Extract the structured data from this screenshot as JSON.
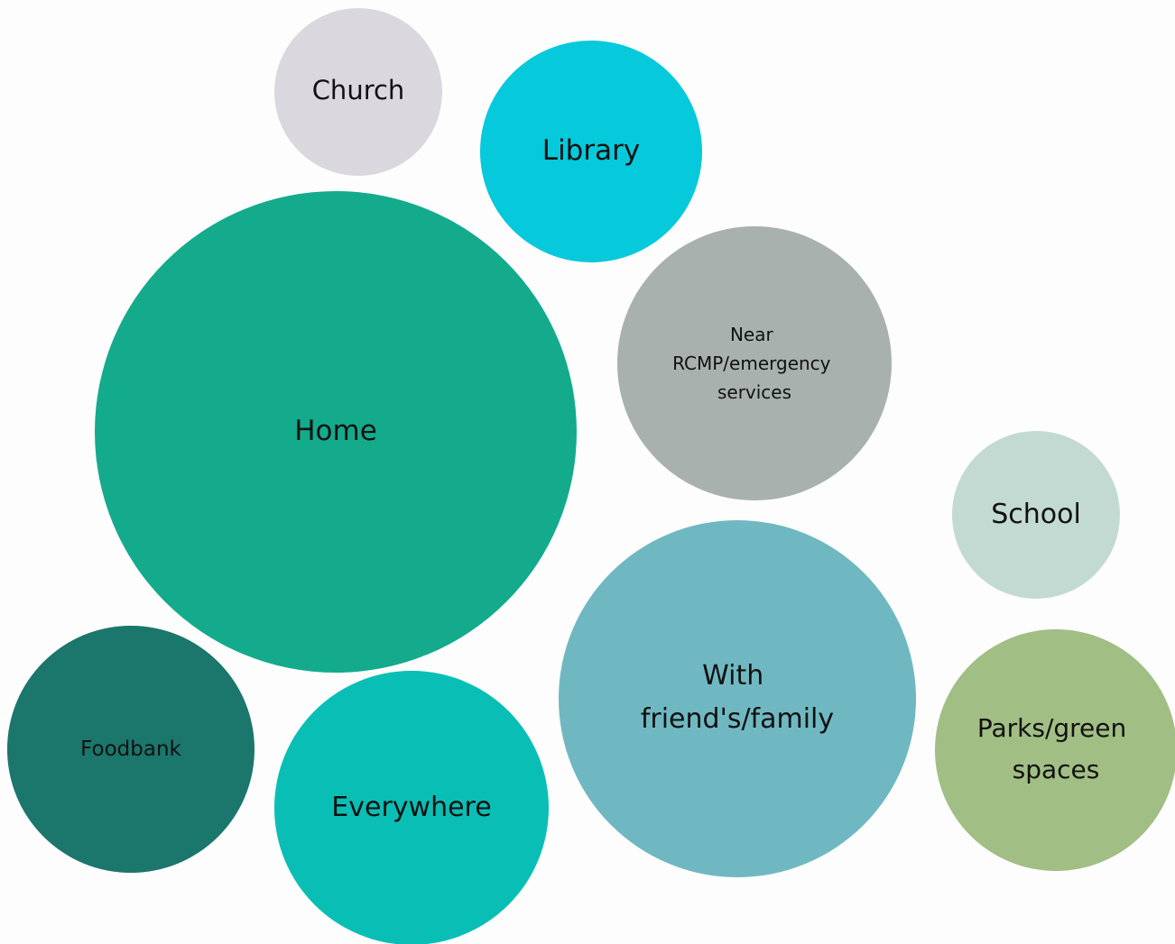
{
  "nodes": [
    {
      "lines": [
        "Church"
      ]
    },
    {
      "lines": [
        "Library"
      ]
    },
    {
      "lines": [
        "Home"
      ]
    },
    {
      "lines": [
        "Near",
        "RCMP/emergency",
        "services"
      ]
    },
    {
      "lines": [
        "School"
      ]
    },
    {
      "lines": [
        "With",
        "friend's/family"
      ]
    },
    {
      "lines": [
        "Parks/green",
        "spaces"
      ]
    },
    {
      "lines": [
        "Foodbank"
      ]
    },
    {
      "lines": [
        "Everywhere"
      ]
    }
  ]
}
